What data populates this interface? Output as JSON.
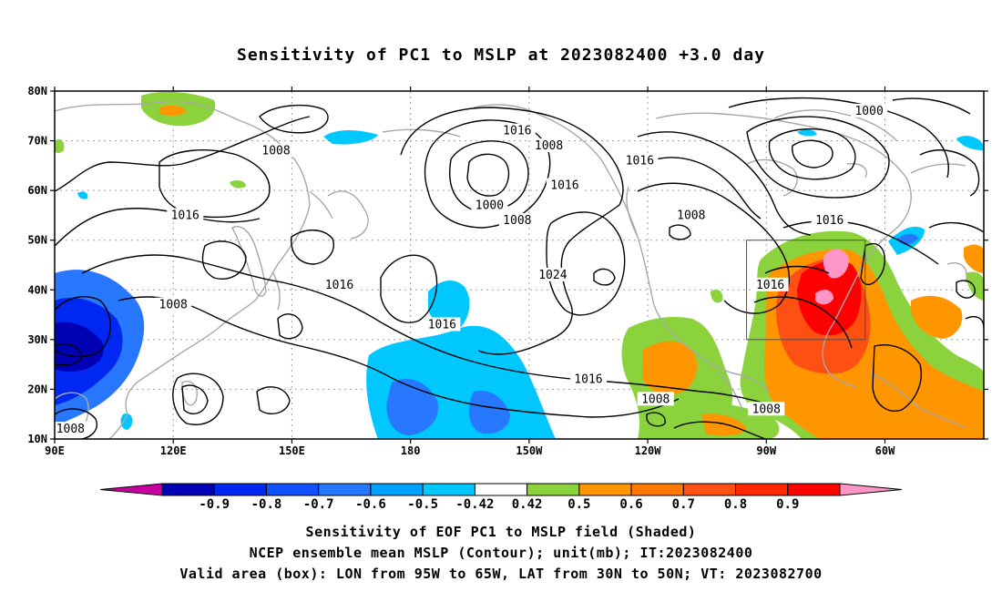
{
  "title": "Sensitivity of PC1 to MSLP at 2023082400 +3.0 day",
  "lat_labels": [
    "80N",
    "70N",
    "60N",
    "50N",
    "40N",
    "30N",
    "20N",
    "10N"
  ],
  "lon_labels": [
    "90E",
    "120E",
    "150E",
    "180",
    "150W",
    "120W",
    "90W",
    "60W"
  ],
  "contour_labels": [
    {
      "text": "1016",
      "lon": 207,
      "lat": 72
    },
    {
      "text": "1008",
      "lon": 215,
      "lat": 69
    },
    {
      "text": "1000",
      "lon": 200,
      "lat": 57
    },
    {
      "text": "1016",
      "lon": 219,
      "lat": 61
    },
    {
      "text": "1008",
      "lon": 207,
      "lat": 54
    },
    {
      "text": "1024",
      "lon": 216,
      "lat": 43
    },
    {
      "text": "1016",
      "lon": 188,
      "lat": 33
    },
    {
      "text": "1016",
      "lon": 225,
      "lat": 22
    },
    {
      "text": "1008",
      "lon": 242,
      "lat": 18
    },
    {
      "text": "1008",
      "lon": 270,
      "lat": 16
    },
    {
      "text": "1016",
      "lon": 271,
      "lat": 41
    },
    {
      "text": "1016",
      "lon": 286,
      "lat": 54
    },
    {
      "text": "1008",
      "lon": 251,
      "lat": 55
    },
    {
      "text": "1016",
      "lon": 238,
      "lat": 66
    },
    {
      "text": "1000",
      "lon": 296,
      "lat": 76
    },
    {
      "text": "1008",
      "lon": 146,
      "lat": 68
    },
    {
      "text": "1016",
      "lon": 123,
      "lat": 55
    },
    {
      "text": "1016",
      "lon": 162,
      "lat": 41
    },
    {
      "text": "1008",
      "lon": 120,
      "lat": 37
    },
    {
      "text": "1008",
      "lon": 94,
      "lat": 12
    }
  ],
  "colorbar": {
    "colors": [
      "#c800a0",
      "#0000b4",
      "#0028f0",
      "#1050ff",
      "#2878ff",
      "#00a0ff",
      "#00c8ff",
      "#ffffff",
      "#8cd23c",
      "#ff9600",
      "#ff7800",
      "#ff5014",
      "#ff2800",
      "#ff0000",
      "#ff96c8"
    ],
    "labels": [
      "-0.9",
      "-0.8",
      "-0.7",
      "-0.6",
      "-0.5",
      "-0.42",
      "0.42",
      "0.5",
      "0.6",
      "0.7",
      "0.8",
      "0.9"
    ]
  },
  "valid_box": {
    "lon_min": 265,
    "lon_max": 295,
    "lat_min": 30,
    "lat_max": 50
  },
  "captions": {
    "line1": "Sensitivity of EOF PC1 to MSLP field (Shaded)",
    "line2": "NCEP ensemble mean MSLP (Contour); unit(mb); IT:2023082400",
    "line3": "Valid area (box): LON from 95W to 65W, LAT from 30N to 50N; VT: 2023082700"
  }
}
